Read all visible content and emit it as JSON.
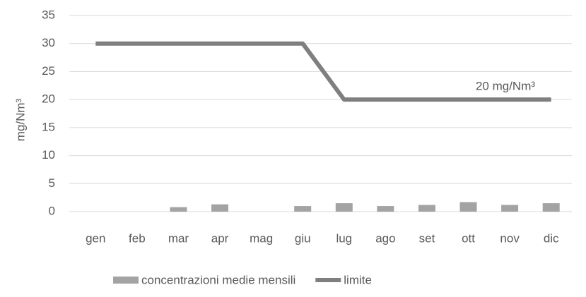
{
  "chart_data": {
    "type": "bar",
    "ylabel": "mg/Nm³",
    "annotation": "20 mg/Nm³",
    "categories": [
      "gen",
      "feb",
      "mar",
      "apr",
      "mag",
      "giu",
      "lug",
      "ago",
      "set",
      "ott",
      "nov",
      "dic"
    ],
    "series": [
      {
        "name": "concentrazioni medie mensili",
        "type": "bar",
        "color": "#a3a3a3",
        "values": [
          null,
          null,
          0.8,
          1.3,
          null,
          1.0,
          1.5,
          1.0,
          1.2,
          1.7,
          1.2,
          1.5
        ]
      },
      {
        "name": "limite",
        "type": "line",
        "color": "#7f7f7f",
        "values": [
          30,
          30,
          30,
          30,
          30,
          30,
          20,
          20,
          20,
          20,
          20,
          20
        ]
      }
    ],
    "ylim": [
      0,
      35
    ],
    "yticks": [
      0,
      5,
      10,
      15,
      20,
      25,
      30,
      35
    ],
    "grid": true,
    "legend": "bottom"
  }
}
